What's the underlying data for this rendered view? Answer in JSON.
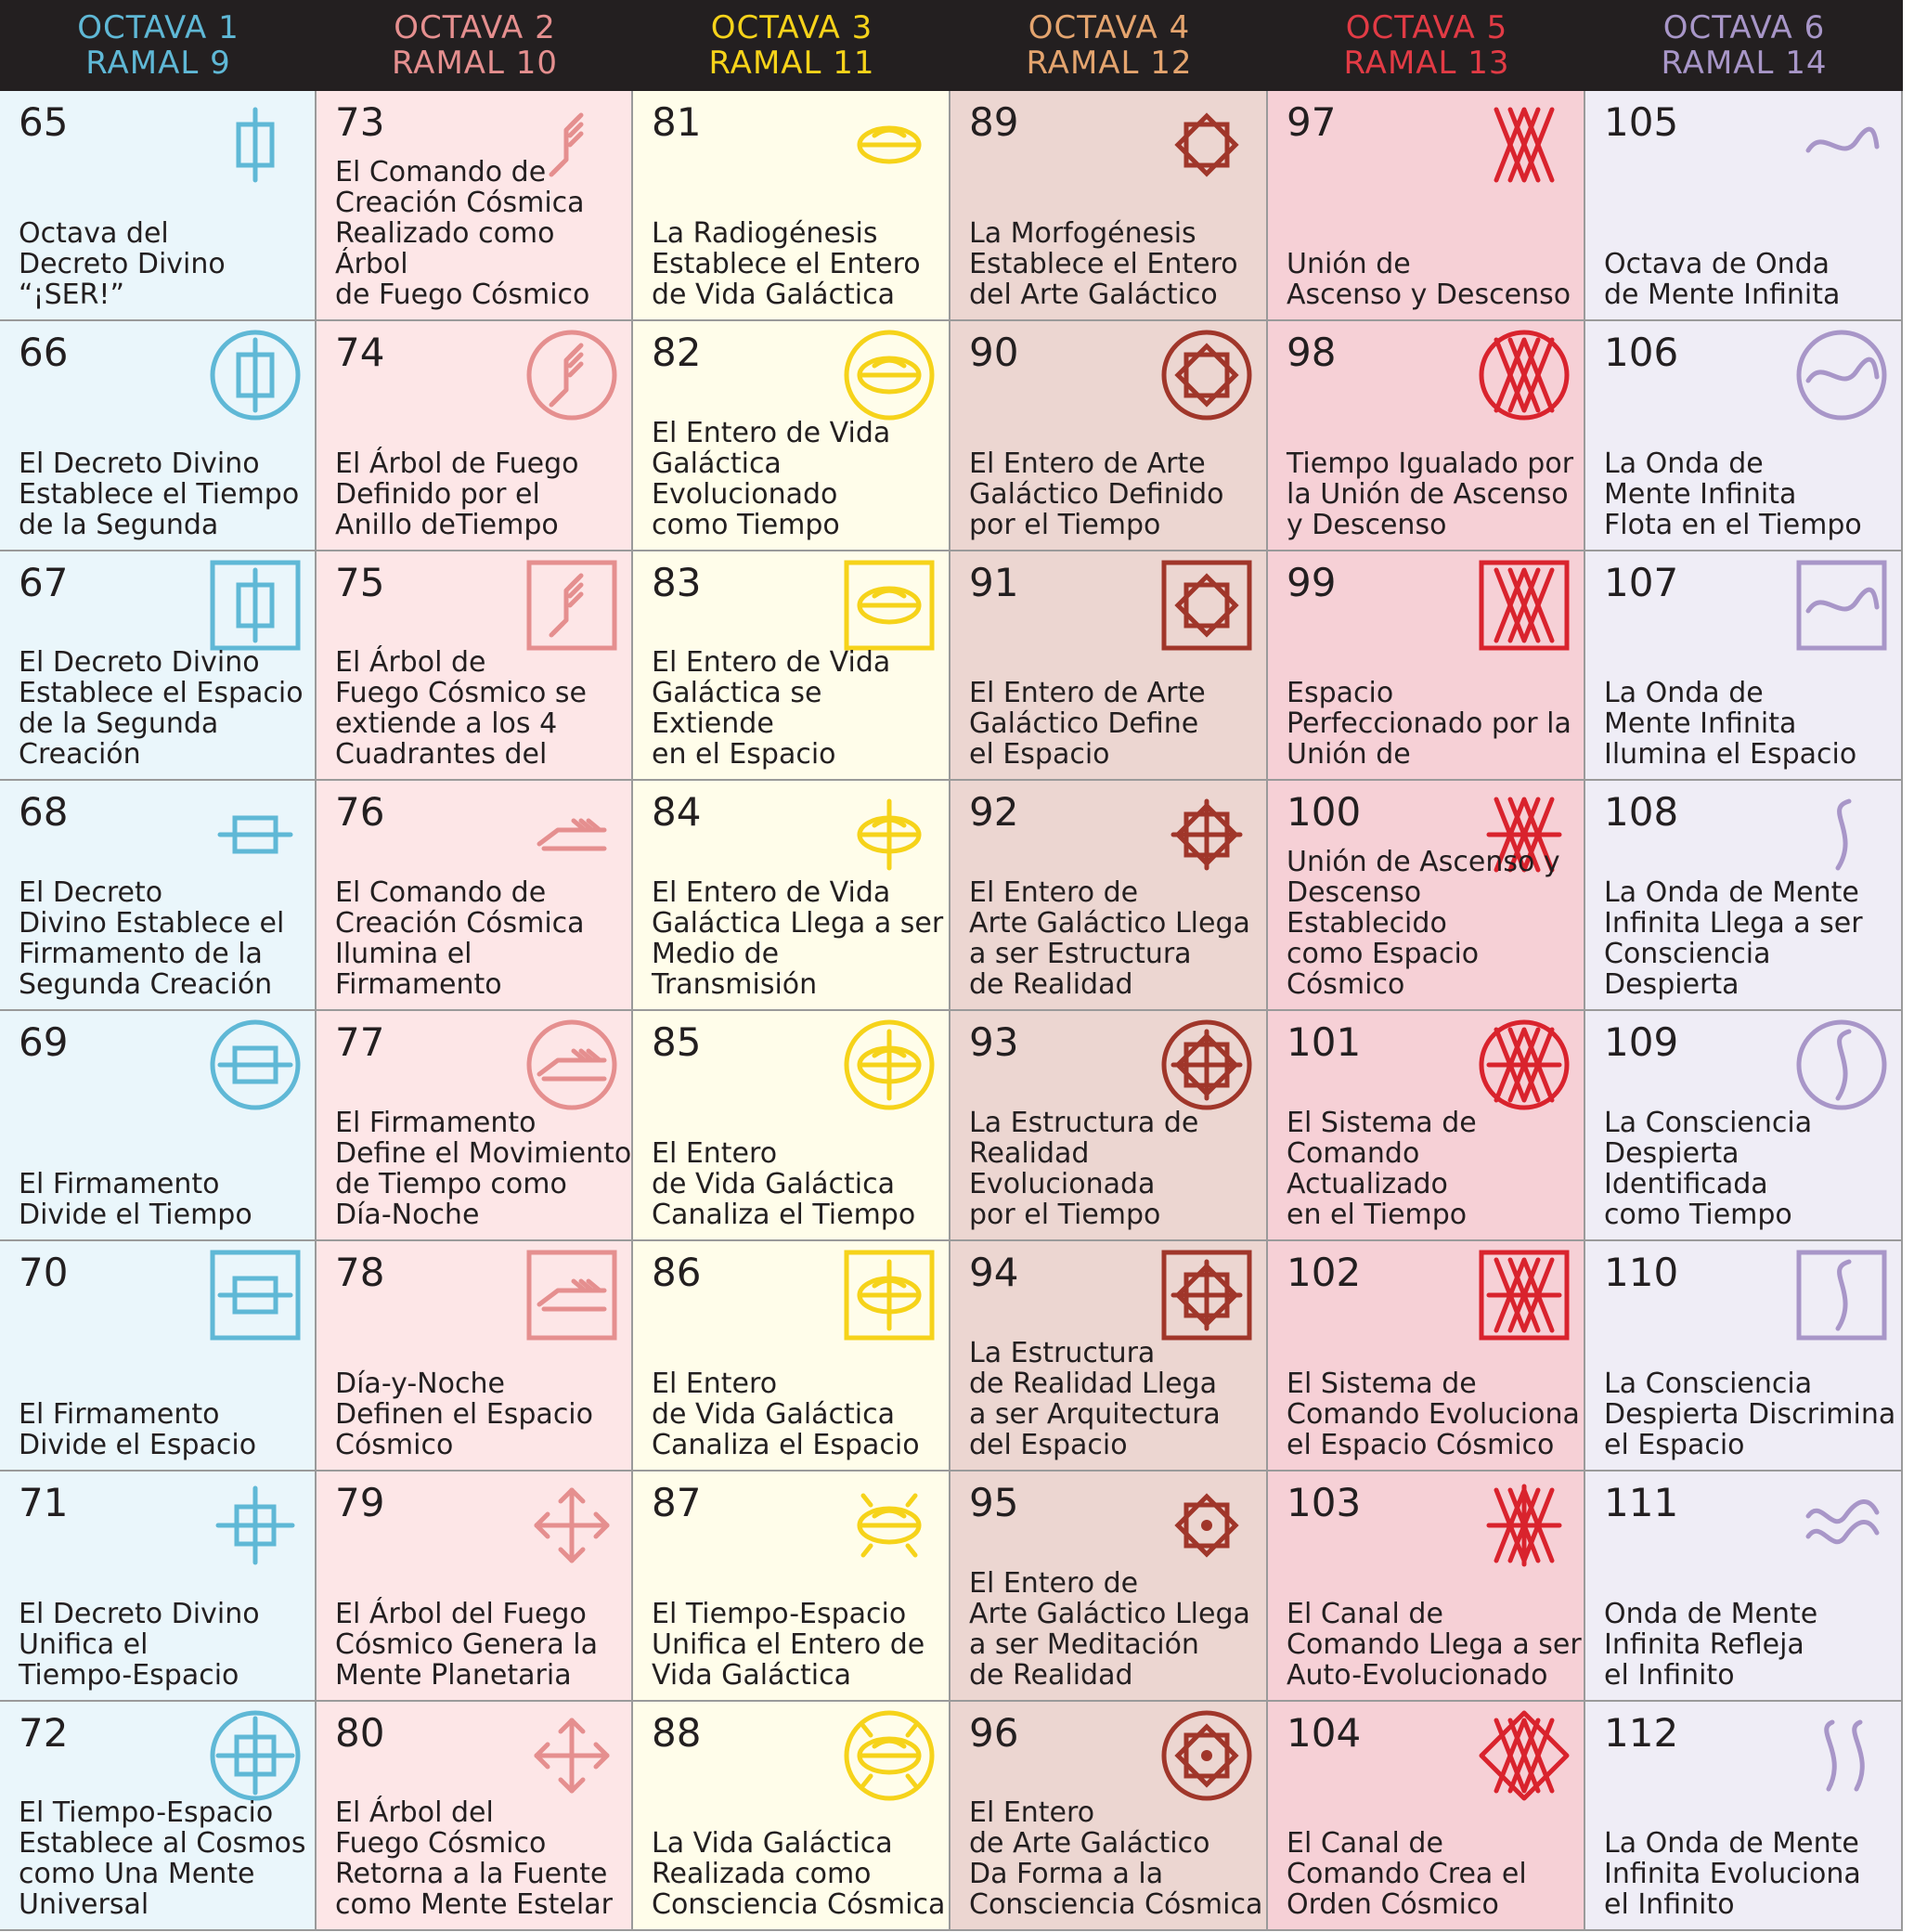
{
  "columns": [
    {
      "octava": "OCTAVA 1",
      "ramal": "RAMAL 9",
      "color": "#5fb8d6",
      "bg": "#eaf6fb"
    },
    {
      "octava": "OCTAVA 2",
      "ramal": "RAMAL 10",
      "color": "#e58f8f",
      "bg": "#fde6e7"
    },
    {
      "octava": "OCTAVA 3",
      "ramal": "RAMAL 11",
      "color": "#f6d31a",
      "bg": "#fffdea"
    },
    {
      "octava": "OCTAVA 4",
      "ramal": "RAMAL 12",
      "color": "#e4a46e",
      "bg": "#ecd6d1"
    },
    {
      "octava": "OCTAVA 5",
      "ramal": "RAMAL 13",
      "color": "#e23b45",
      "bg": "#f6d0d6"
    },
    {
      "octava": "OCTAVA 6",
      "ramal": "RAMAL 14",
      "color": "#a896c8",
      "bg": "#efedf6"
    }
  ],
  "glyph_colors": [
    "#5fb8d6",
    "#e58f8f",
    "#f6d31a",
    "#a0362a",
    "#d9232d",
    "#a896c8"
  ],
  "cells": [
    [
      {
        "num": "65",
        "text": "Octava del\nDecreto Divino “¡SER!”",
        "icon": "bar-square-icon"
      },
      {
        "num": "66",
        "text": "El Decreto Divino\nEstablece el Tiempo\nde la Segunda",
        "icon": "bar-square-circle-icon"
      },
      {
        "num": "67",
        "text": "El Decreto Divino\nEstablece el Espacio\nde la Segunda\nCreación",
        "icon": "bar-square-square-icon"
      },
      {
        "num": "68",
        "text": "El Decreto\nDivino  Establece el\nFirmamento de la\nSegunda Creación",
        "icon": "hbar-square-icon"
      },
      {
        "num": "69",
        "text": "El Firmamento\nDivide el Tiempo",
        "icon": "hbar-square-circle-icon"
      },
      {
        "num": "70",
        "text": "El Firmamento\nDivide el Espacio",
        "icon": "hbar-square-square-icon"
      },
      {
        "num": "71",
        "text": "El Decreto Divino\nUnifica el\nTiempo-Espacio",
        "icon": "cross-square-icon"
      },
      {
        "num": "72",
        "text": "El Tiempo-Espacio\nEstablece al Cosmos\ncomo Una Mente\nUniversal",
        "icon": "cross-square-circle-icon"
      }
    ],
    [
      {
        "num": "73",
        "text": "El Comando de\nCreación Cósmica\nRealizado como Árbol\nde Fuego Cósmico",
        "icon": "arrow-feather-icon"
      },
      {
        "num": "74",
        "text": "El Árbol de Fuego\nDefinido por el\nAnillo deTiempo",
        "icon": "arrow-feather-circle-icon"
      },
      {
        "num": "75",
        "text": "El Árbol de\nFuego Cósmico se\nextiende a los 4\nCuadrantes del",
        "icon": "arrow-feather-square-icon"
      },
      {
        "num": "76",
        "text": "El Comando de\nCreación Cósmica\nIlumina el Firmamento",
        "icon": "harrow-feather-icon"
      },
      {
        "num": "77",
        "text": "El Firmamento\nDefine el Movimiento\nde Tiempo como\nDía-Noche",
        "icon": "harrow-feather-circle-icon"
      },
      {
        "num": "78",
        "text": "Día-y-Noche\nDefinen el Espacio\nCósmico",
        "icon": "harrow-feather-square-icon"
      },
      {
        "num": "79",
        "text": "El Árbol del Fuego\nCósmico Genera la\nMente Planetaria",
        "icon": "cross-feather-icon"
      },
      {
        "num": "80",
        "text": "El Árbol del\nFuego Cósmico\nRetorna a la Fuente\ncomo Mente Estelar",
        "icon": "cross-feather-in-icon"
      }
    ],
    [
      {
        "num": "81",
        "text": "La Radiogénesis\nEstablece el Entero\nde Vida Galáctica",
        "icon": "disc-icon"
      },
      {
        "num": "82",
        "text": "El Entero de Vida\nGaláctica Evolucionado\ncomo Tiempo",
        "icon": "disc-circle-icon"
      },
      {
        "num": "83",
        "text": "El Entero de Vida\nGaláctica se Extiende\nen el Espacio",
        "icon": "disc-square-icon"
      },
      {
        "num": "84",
        "text": "El Entero de Vida\nGaláctica Llega a ser\nMedio de Transmisión",
        "icon": "disc-cross-icon"
      },
      {
        "num": "85",
        "text": "El Entero\nde Vida Galáctica\nCanaliza el Tiempo",
        "icon": "disc-cross-circle-icon"
      },
      {
        "num": "86",
        "text": "El Entero\nde Vida Galáctica\nCanaliza el Espacio",
        "icon": "disc-cross-square-icon"
      },
      {
        "num": "87",
        "text": "El Tiempo-Espacio\nUnifica el Entero de\nVida Galáctica",
        "icon": "disc-rays-icon"
      },
      {
        "num": "88",
        "text": "La Vida Galáctica\nRealizada como\nConsciencia Cósmica",
        "icon": "disc-rays-circle-icon"
      }
    ],
    [
      {
        "num": "89",
        "text": "La Morfogénesis\nEstablece el Entero\ndel Arte Galáctico",
        "icon": "octagram-icon"
      },
      {
        "num": "90",
        "text": "El Entero de Arte\nGaláctico Definido\npor el Tiempo",
        "icon": "octagram-circle-icon"
      },
      {
        "num": "91",
        "text": "El Entero de Arte\nGaláctico Define\nel Espacio",
        "icon": "octagram-square-icon"
      },
      {
        "num": "92",
        "text": "El Entero de\nArte Galáctico Llega\na ser Estructura\nde Realidad",
        "icon": "octagram-cross-icon"
      },
      {
        "num": "93",
        "text": "La Estructura de\nRealidad Evolucionada\npor el Tiempo",
        "icon": "octagram-cross-circle-icon"
      },
      {
        "num": "94",
        "text": "La Estructura\nde Realidad Llega\na ser Arquitectura\ndel Espacio",
        "icon": "octagram-cross-square-icon"
      },
      {
        "num": "95",
        "text": "El Entero de\nArte Galáctico Llega\na ser Meditación\nde Realidad",
        "icon": "octagram-dot-icon"
      },
      {
        "num": "96",
        "text": "El Entero\nde Arte Galáctico\nDa Forma a la\nConsciencia Cósmica",
        "icon": "octagram-dot-circle-icon"
      }
    ],
    [
      {
        "num": "97",
        "text": "Unión de\nAscenso y Descenso",
        "icon": "double-triangle-icon"
      },
      {
        "num": "98",
        "text": "Tiempo Igualado por\nla Unión de Ascenso\ny Descenso",
        "icon": "double-triangle-circle-icon"
      },
      {
        "num": "99",
        "text": "Espacio\nPerfeccionado por la\nUnión de",
        "icon": "double-triangle-square-icon"
      },
      {
        "num": "100",
        "text": "Unión de Ascenso y\nDescenso Establecido\ncomo Espacio Cósmico",
        "icon": "double-triangle-cross-icon"
      },
      {
        "num": "101",
        "text": "El Sistema de\nComando Actualizado\nen el Tiempo",
        "icon": "double-triangle-cross-circle-icon"
      },
      {
        "num": "102",
        "text": "El Sistema de\nComando Evoluciona\nel Espacio Cósmico",
        "icon": "double-triangle-cross-square-icon"
      },
      {
        "num": "103",
        "text": "El Canal de\nComando Llega a ser\nAuto-Evolucionado",
        "icon": "double-triangle-star-icon"
      },
      {
        "num": "104",
        "text": "El Canal de\nComando Crea el\nOrden Cósmico",
        "icon": "double-triangle-diamond-icon"
      }
    ],
    [
      {
        "num": "105",
        "text": "Octava de Onda\nde Mente Infinita",
        "icon": "wave-icon"
      },
      {
        "num": "106",
        "text": "La Onda de\nMente Infinita\nFlota en el Tiempo",
        "icon": "wave-circle-icon"
      },
      {
        "num": "107",
        "text": "La Onda de\nMente Infinita\nIlumina el Espacio",
        "icon": "wave-square-icon"
      },
      {
        "num": "108",
        "text": "La Onda de Mente\nInfinita Llega a ser\nConsciencia Despierta",
        "icon": "s-wave-icon"
      },
      {
        "num": "109",
        "text": "La Consciencia\nDespierta Identificada\ncomo Tiempo",
        "icon": "s-wave-circle-icon"
      },
      {
        "num": "110",
        "text": "La Consciencia\nDespierta Discrimina\nel Espacio",
        "icon": "s-wave-square-icon"
      },
      {
        "num": "111",
        "text": "Onda de Mente\nInfinita Refleja\nel Infinito",
        "icon": "double-wave-icon"
      },
      {
        "num": "112",
        "text": "La Onda de Mente\nInfinita Evoluciona\nel Infinito",
        "icon": "double-s-wave-icon"
      }
    ]
  ]
}
